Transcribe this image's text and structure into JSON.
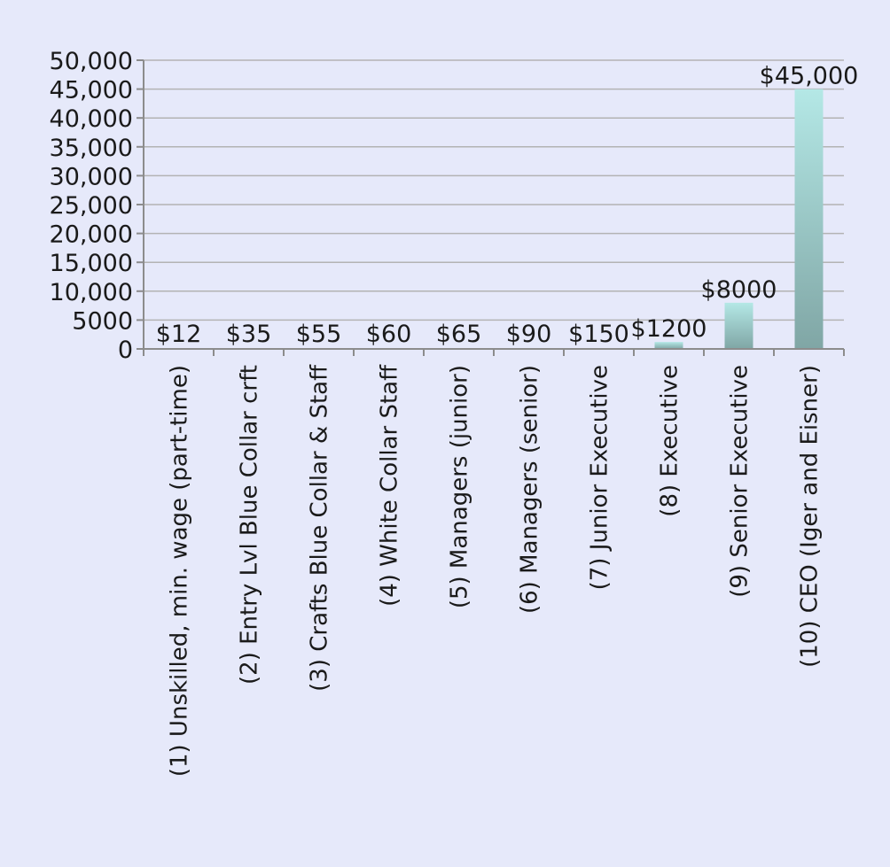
{
  "chart_data": {
    "type": "bar",
    "title": "",
    "xlabel": "",
    "ylabel": "",
    "categories": [
      "(1) Unskilled, min. wage (part-time)",
      "(2) Entry Lvl Blue Collar crft",
      "(3) Crafts Blue Collar & Staff",
      "(4) White Collar Staff",
      "(5) Managers (junior)",
      "(6) Managers (senior)",
      "(7) Junior Executive",
      "(8) Executive",
      "(9) Senior Executive",
      "(10) CEO (Iger and Eisner)"
    ],
    "values": [
      12,
      35,
      55,
      60,
      65,
      90,
      150,
      1200,
      8000,
      45000
    ],
    "data_labels": [
      "$12",
      "$35",
      "$55",
      "$60",
      "$65",
      "$90",
      "$150",
      "$1200",
      "$8000",
      "$45,000"
    ],
    "ylim": [
      0,
      50000
    ],
    "yticks": [
      0,
      5000,
      10000,
      15000,
      20000,
      25000,
      30000,
      35000,
      40000,
      45000,
      50000
    ],
    "ytick_labels": [
      "0",
      "5000",
      "10,000",
      "15,000",
      "20,000",
      "25,000",
      "30,000",
      "35,000",
      "40,000",
      "45,000",
      "50,000"
    ],
    "grid": true,
    "legend": "none",
    "colors": {
      "background": "#e6e9fa",
      "bar_top": "#b4e8e6",
      "bar_bottom": "#80a6a5",
      "grid": "#b3b3b3",
      "axis": "#8c8c8c",
      "text": "#1a1a1a"
    }
  }
}
